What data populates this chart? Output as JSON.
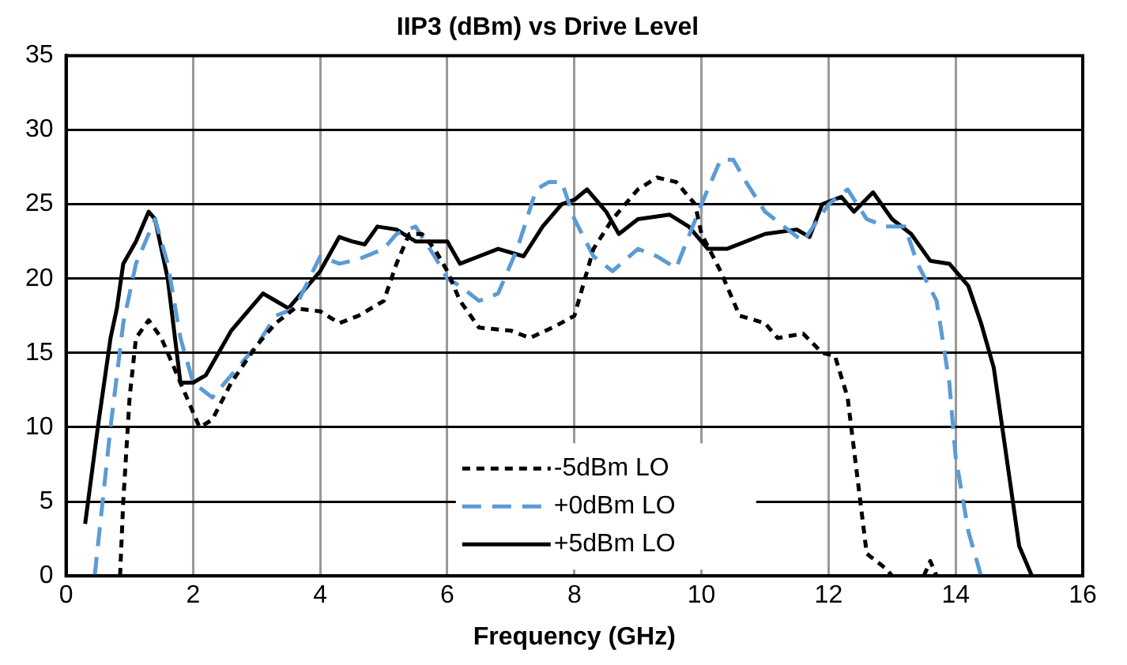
{
  "chart_data": {
    "type": "line",
    "title": "IIP3 (dBm) vs Drive Level",
    "xlabel": "Frequency (GHz)",
    "xlim": [
      0,
      16
    ],
    "xticks": [
      0,
      2,
      4,
      6,
      8,
      10,
      12,
      14,
      16
    ],
    "ylim": [
      0,
      35
    ],
    "yticks": [
      0,
      5,
      10,
      15,
      20,
      25,
      30,
      35
    ],
    "grid": true,
    "legend": "bottom",
    "marker": "none",
    "series": [
      {
        "name": "-5dBm LO",
        "color": "#000000",
        "line_style": "dashed",
        "x": [
          0.85,
          0.9,
          1.0,
          1.1,
          1.3,
          1.5,
          1.8,
          2.1,
          2.3,
          2.6,
          3.0,
          3.3,
          3.6,
          4.0,
          4.3,
          4.6,
          5.0,
          5.2,
          5.4,
          5.6,
          5.8,
          6.0,
          6.2,
          6.5,
          7.0,
          7.3,
          7.7,
          8.0,
          8.3,
          8.6,
          9.0,
          9.3,
          9.6,
          9.9,
          10.0,
          10.3,
          10.6,
          11.0,
          11.2,
          11.6,
          11.9,
          12.1,
          12.3,
          12.5,
          12.6,
          12.9,
          13.0,
          13.3,
          13.5,
          13.6,
          13.7
        ],
        "values": [
          0,
          5,
          12,
          16,
          17.2,
          16,
          13,
          10,
          10.5,
          13,
          15.5,
          17,
          18,
          17.8,
          17,
          17.5,
          18.5,
          21,
          23,
          23,
          22,
          20.5,
          18.5,
          16.7,
          16.5,
          16,
          16.8,
          17.5,
          22,
          24,
          26,
          26.8,
          26.5,
          25,
          23,
          20.5,
          17.5,
          17,
          16,
          16.3,
          15,
          14.8,
          12,
          5,
          1.5,
          0.5,
          0,
          null,
          0,
          1,
          0
        ]
      },
      {
        "name": "+0dBm LO",
        "color": "#5b9bd5",
        "line_style": "dashed",
        "x": [
          0.45,
          0.6,
          0.7,
          0.9,
          1.1,
          1.3,
          1.4,
          1.6,
          1.8,
          2.0,
          2.3,
          2.6,
          3.0,
          3.3,
          3.6,
          4.0,
          4.3,
          4.6,
          5.0,
          5.2,
          5.5,
          5.8,
          6.0,
          6.2,
          6.5,
          6.8,
          7.1,
          7.4,
          7.6,
          7.8,
          8.0,
          8.3,
          8.6,
          9.0,
          9.3,
          9.6,
          10.0,
          10.3,
          10.5,
          10.7,
          11.0,
          11.3,
          11.6,
          12.0,
          12.3,
          12.6,
          12.9,
          13.2,
          13.4,
          13.7,
          13.9,
          14.0,
          14.2,
          14.4
        ],
        "values": [
          0,
          6,
          10,
          17,
          21,
          23,
          24,
          21,
          16,
          13,
          12,
          13.5,
          15.5,
          17.5,
          18,
          21.5,
          21,
          21.3,
          22,
          23,
          23.5,
          21.5,
          20,
          19.5,
          18.5,
          19,
          22,
          26,
          26.5,
          26.5,
          24,
          21.5,
          20.5,
          22,
          21.5,
          20.7,
          25,
          28,
          28,
          26.5,
          24.5,
          23.5,
          22.5,
          25,
          26,
          24,
          23.5,
          23.5,
          21,
          18.5,
          13,
          8,
          3,
          0
        ]
      },
      {
        "name": "+5dBm LO",
        "color": "#000000",
        "line_style": "solid",
        "x": [
          0.3,
          0.5,
          0.7,
          0.8,
          0.9,
          1.1,
          1.3,
          1.4,
          1.6,
          1.8,
          2.0,
          2.2,
          2.4,
          2.6,
          2.9,
          3.1,
          3.3,
          3.5,
          3.7,
          4.0,
          4.3,
          4.5,
          4.7,
          4.9,
          5.2,
          5.5,
          6.0,
          6.2,
          6.5,
          6.8,
          7.2,
          7.5,
          7.8,
          8.0,
          8.2,
          8.5,
          8.7,
          9.0,
          9.5,
          9.8,
          10.1,
          10.4,
          11.0,
          11.5,
          11.7,
          11.9,
          12.2,
          12.4,
          12.7,
          13.0,
          13.3,
          13.6,
          13.9,
          14.2,
          14.4,
          14.6,
          14.8,
          15.0,
          15.2
        ],
        "values": [
          3.5,
          10,
          16,
          18,
          21,
          22.5,
          24.5,
          24,
          20,
          13,
          13,
          13.5,
          15,
          16.5,
          18,
          19,
          18.5,
          18,
          19,
          20.5,
          22.8,
          22.5,
          22.3,
          23.5,
          23.3,
          22.5,
          22.5,
          21,
          21.5,
          22,
          21.5,
          23.5,
          25,
          25.3,
          26,
          24.5,
          23,
          24,
          24.3,
          23.5,
          22,
          22,
          23,
          23.3,
          22.8,
          25,
          25.5,
          24.5,
          25.8,
          24,
          23,
          21.2,
          21,
          19.5,
          17,
          14,
          8,
          2,
          0
        ]
      }
    ]
  }
}
